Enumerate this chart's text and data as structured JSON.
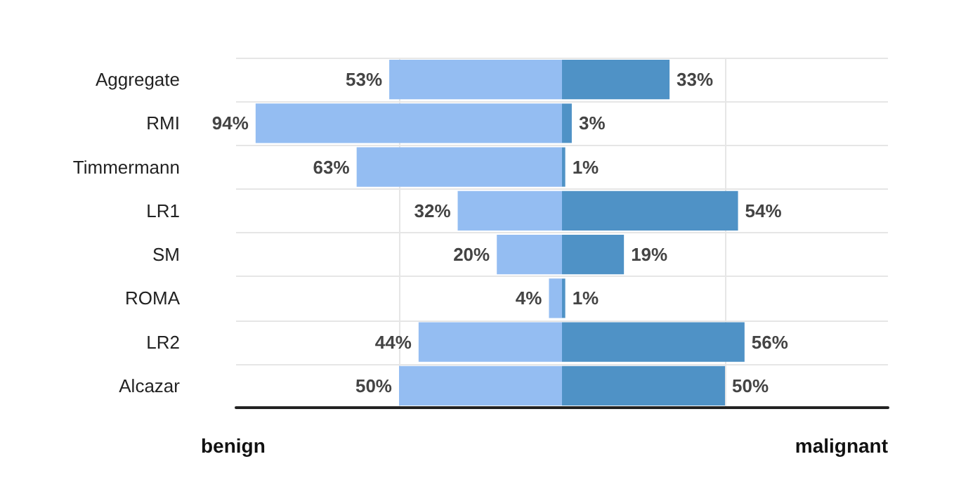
{
  "chart_data": [
    {
      "type": "bar",
      "orientation": "horizontal",
      "xlabel": "benign",
      "categories": [
        "Aggregate",
        "RMI",
        "Timmermann",
        "LR1",
        "SM",
        "ROMA",
        "LR2",
        "Alcazar"
      ],
      "series": [
        {
          "color": "#94bdf2",
          "values": [
            53,
            94,
            63,
            32,
            20,
            4,
            44,
            50
          ],
          "value_labels": [
            "53%",
            "94%",
            "63%",
            "32%",
            "20%",
            "4%",
            "44%",
            "50%"
          ]
        }
      ],
      "xlim": [
        100,
        0
      ],
      "xticks": [
        {
          "value": 50,
          "label": null
        }
      ],
      "tick_labels": "y",
      "grid": true
    },
    {
      "type": "bar",
      "orientation": "horizontal",
      "xlabel": "malignant",
      "categories": [
        null,
        null,
        null,
        null,
        null,
        null,
        null,
        null
      ],
      "series": [
        {
          "color": "#4f92c6",
          "values": [
            33,
            3,
            1,
            54,
            19,
            1,
            56,
            50
          ],
          "value_labels": [
            "33%",
            "3%",
            "1%",
            "54%",
            "19%",
            "1%",
            "56%",
            "50%"
          ]
        }
      ],
      "xlim": [
        0,
        100
      ],
      "xticks": [
        {
          "value": 50,
          "label": null
        }
      ],
      "tick_labels": false,
      "grid": true
    }
  ]
}
